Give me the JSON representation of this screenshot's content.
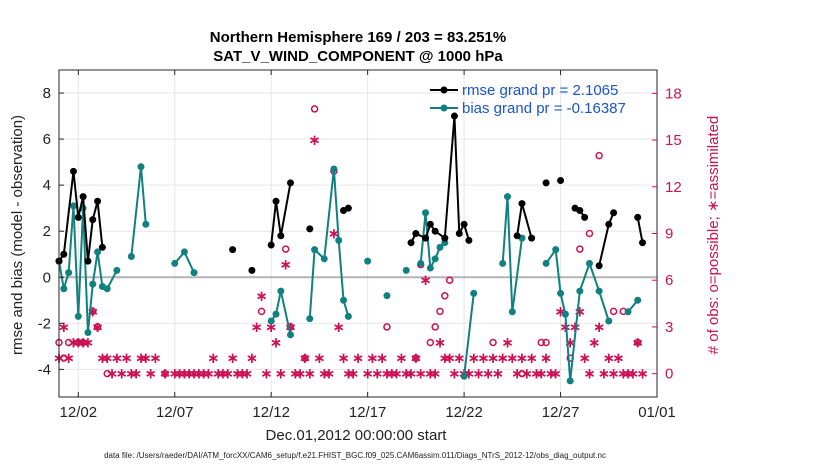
{
  "chart_data": {
    "type": "line",
    "title": "Northern Hemisphere 169 / 203 = 83.251%",
    "subtitle": "SAT_V_WIND_COMPONENT @ 1000 hPa",
    "xlabel": "Dec.01,2012 00:00:00 start",
    "ylabel": "rmse and bias (model - observation)",
    "y2label": "# of obs: o=possible; ∗=assimilated",
    "footnote": "data file: /Users/raeder/DAI/ATM_forcXX/CAM6_setup/f.e21.FHIST_BGC.f09_025.CAM6assim.011/Diags_NTrS_2012-12/obs_diag_output.nc",
    "xlim": [
      0,
      31
    ],
    "ylim": [
      -5.2,
      9
    ],
    "y2lim": [
      -1.5,
      19.5
    ],
    "x_ticks": [
      {
        "x": 1,
        "label": "12/02"
      },
      {
        "x": 6,
        "label": "12/07"
      },
      {
        "x": 11,
        "label": "12/12"
      },
      {
        "x": 16,
        "label": "12/17"
      },
      {
        "x": 21,
        "label": "12/22"
      },
      {
        "x": 26,
        "label": "12/27"
      },
      {
        "x": 31,
        "label": "01/01"
      }
    ],
    "y_ticks": [
      -4,
      -2,
      0,
      2,
      4,
      6,
      8
    ],
    "y2_ticks": [
      0,
      3,
      6,
      9,
      12,
      15,
      18
    ],
    "colors": {
      "rmse": "#000000",
      "bias": "#118080",
      "obs": "#cc1155",
      "legend_text": "#1a55cc",
      "zero_line": "#b3b3b3"
    },
    "series": [
      {
        "name": "rmse",
        "legend": "rmse grand pr = 2.1065",
        "points": [
          [
            0,
            0.7
          ],
          [
            0.25,
            1.0
          ],
          [
            0.75,
            4.6
          ],
          [
            1.0,
            2.6
          ],
          [
            1.25,
            3.5
          ],
          [
            1.5,
            0.7
          ],
          [
            1.75,
            2.5
          ],
          [
            2.0,
            3.3
          ],
          [
            2.25,
            1.3
          ],
          [
            9.0,
            1.2
          ],
          [
            10.0,
            0.3
          ],
          [
            11.0,
            1.4
          ],
          [
            11.25,
            3.3
          ],
          [
            11.5,
            1.8
          ],
          [
            12.0,
            4.1
          ],
          [
            13.0,
            2.1
          ],
          [
            14.75,
            2.9
          ],
          [
            15.0,
            3.0
          ],
          [
            18.25,
            1.5
          ],
          [
            18.5,
            1.9
          ],
          [
            19.0,
            1.7
          ],
          [
            19.25,
            2.3
          ],
          [
            19.5,
            2.0
          ],
          [
            20.0,
            1.7
          ],
          [
            20.5,
            7.0
          ],
          [
            20.75,
            1.9
          ],
          [
            21.0,
            2.3
          ],
          [
            21.25,
            1.6
          ],
          [
            23.75,
            1.8
          ],
          [
            24.0,
            3.2
          ],
          [
            24.5,
            1.7
          ],
          [
            25.25,
            4.1
          ],
          [
            26.0,
            4.2
          ],
          [
            26.75,
            3.0
          ],
          [
            27.0,
            2.9
          ],
          [
            27.25,
            2.6
          ],
          [
            28.0,
            0.5
          ],
          [
            28.5,
            2.3
          ],
          [
            28.75,
            2.8
          ],
          [
            30.0,
            2.6
          ],
          [
            30.25,
            1.5
          ]
        ]
      },
      {
        "name": "bias",
        "legend": "bias grand pr = -0.16387",
        "points": [
          [
            0,
            0.7
          ],
          [
            0.25,
            -0.5
          ],
          [
            0.5,
            0.2
          ],
          [
            0.75,
            3.1
          ],
          [
            1.0,
            -1.7
          ],
          [
            1.25,
            3.0
          ],
          [
            1.5,
            -2.4
          ],
          [
            1.75,
            -0.3
          ],
          [
            2.0,
            1.1
          ],
          [
            2.25,
            -0.4
          ],
          [
            2.5,
            -0.5
          ],
          [
            3.0,
            0.3
          ],
          [
            3.75,
            0.9
          ],
          [
            4.25,
            4.8
          ],
          [
            4.5,
            2.3
          ],
          [
            6.0,
            0.6
          ],
          [
            6.5,
            1.1
          ],
          [
            7.0,
            0.2
          ],
          [
            11.0,
            -1.9
          ],
          [
            11.25,
            -1.6
          ],
          [
            11.5,
            -0.6
          ],
          [
            12.0,
            -2.5
          ],
          [
            13.0,
            -1.8
          ],
          [
            13.25,
            1.2
          ],
          [
            13.75,
            0.8
          ],
          [
            14.25,
            4.7
          ],
          [
            14.5,
            1.6
          ],
          [
            14.75,
            -1.0
          ],
          [
            15.0,
            -1.7
          ],
          [
            16.0,
            0.7
          ],
          [
            17.0,
            -0.8
          ],
          [
            18.0,
            0.3
          ],
          [
            18.75,
            0.6
          ],
          [
            19.0,
            2.8
          ],
          [
            19.25,
            0.4
          ],
          [
            19.5,
            0.8
          ],
          [
            19.75,
            1.3
          ],
          [
            20.0,
            1.5
          ],
          [
            21.0,
            -4.3
          ],
          [
            21.5,
            -0.7
          ],
          [
            23.0,
            0.6
          ],
          [
            23.25,
            3.5
          ],
          [
            23.5,
            -1.5
          ],
          [
            24.0,
            1.7
          ],
          [
            25.25,
            0.6
          ],
          [
            25.75,
            1.2
          ],
          [
            26.0,
            -0.7
          ],
          [
            26.25,
            -1.6
          ],
          [
            26.5,
            -4.5
          ],
          [
            27.0,
            -0.6
          ],
          [
            27.5,
            0.6
          ],
          [
            28.0,
            -0.6
          ],
          [
            28.5,
            -1.9
          ],
          [
            29.5,
            -1.5
          ],
          [
            30.0,
            -1.0
          ]
        ]
      },
      {
        "name": "obs_possible",
        "points": [
          [
            0,
            2
          ],
          [
            0.25,
            1
          ],
          [
            0.5,
            2
          ],
          [
            1.0,
            2
          ],
          [
            1.25,
            2
          ],
          [
            1.75,
            4
          ],
          [
            2.0,
            3
          ],
          [
            2.5,
            0
          ],
          [
            5.5,
            0
          ],
          [
            10.5,
            4
          ],
          [
            11.75,
            8
          ],
          [
            12.0,
            3
          ],
          [
            12.75,
            1
          ],
          [
            13.25,
            17
          ],
          [
            14.25,
            13
          ],
          [
            17.0,
            3
          ],
          [
            18.5,
            1
          ],
          [
            18.75,
            7
          ],
          [
            19.25,
            2
          ],
          [
            19.5,
            3
          ],
          [
            19.75,
            4
          ],
          [
            20.0,
            5
          ],
          [
            20.25,
            6
          ],
          [
            22.5,
            2
          ],
          [
            24.0,
            0
          ],
          [
            25.0,
            2
          ],
          [
            25.25,
            2
          ],
          [
            26.5,
            1
          ],
          [
            27.0,
            8
          ],
          [
            27.5,
            9
          ],
          [
            28.0,
            14
          ],
          [
            28.75,
            4
          ],
          [
            29.25,
            4
          ],
          [
            30.0,
            2
          ]
        ]
      },
      {
        "name": "obs_assimilated",
        "points": [
          [
            0,
            1
          ],
          [
            0.25,
            3
          ],
          [
            0.5,
            1
          ],
          [
            0.75,
            2
          ],
          [
            1.0,
            2
          ],
          [
            1.25,
            2
          ],
          [
            1.5,
            2
          ],
          [
            1.75,
            4
          ],
          [
            2.0,
            3
          ],
          [
            2.25,
            1
          ],
          [
            2.5,
            1
          ],
          [
            2.75,
            0
          ],
          [
            3.0,
            1
          ],
          [
            3.25,
            0
          ],
          [
            3.5,
            1
          ],
          [
            3.75,
            0
          ],
          [
            4.0,
            0
          ],
          [
            4.25,
            1
          ],
          [
            4.5,
            1
          ],
          [
            4.75,
            0
          ],
          [
            5.0,
            1
          ],
          [
            5.5,
            0
          ],
          [
            6.0,
            0
          ],
          [
            6.25,
            0
          ],
          [
            6.5,
            0
          ],
          [
            6.75,
            0
          ],
          [
            7.0,
            0
          ],
          [
            7.25,
            0
          ],
          [
            7.5,
            0
          ],
          [
            7.75,
            0
          ],
          [
            8.0,
            1
          ],
          [
            8.25,
            0
          ],
          [
            8.5,
            0
          ],
          [
            8.75,
            0
          ],
          [
            9.0,
            1
          ],
          [
            9.25,
            0
          ],
          [
            9.5,
            0
          ],
          [
            9.75,
            0
          ],
          [
            10.0,
            1
          ],
          [
            10.25,
            3
          ],
          [
            10.5,
            5
          ],
          [
            10.75,
            0
          ],
          [
            11.0,
            3
          ],
          [
            11.25,
            2
          ],
          [
            11.5,
            0
          ],
          [
            11.75,
            7
          ],
          [
            12.0,
            3
          ],
          [
            12.25,
            0
          ],
          [
            12.5,
            0
          ],
          [
            12.75,
            1
          ],
          [
            13.0,
            0
          ],
          [
            13.25,
            15
          ],
          [
            13.5,
            1
          ],
          [
            13.75,
            0
          ],
          [
            14.0,
            0
          ],
          [
            14.25,
            9
          ],
          [
            14.5,
            3
          ],
          [
            14.75,
            1
          ],
          [
            15.0,
            0
          ],
          [
            15.25,
            0
          ],
          [
            15.5,
            1
          ],
          [
            16.0,
            0
          ],
          [
            16.25,
            1
          ],
          [
            16.5,
            0
          ],
          [
            16.75,
            1
          ],
          [
            17.0,
            0
          ],
          [
            17.25,
            0
          ],
          [
            17.5,
            0
          ],
          [
            17.75,
            1
          ],
          [
            18.0,
            0
          ],
          [
            18.25,
            0
          ],
          [
            18.5,
            1
          ],
          [
            18.75,
            0
          ],
          [
            19.0,
            6
          ],
          [
            19.25,
            0
          ],
          [
            19.5,
            0
          ],
          [
            19.75,
            2
          ],
          [
            20.0,
            1
          ],
          [
            20.25,
            1
          ],
          [
            20.5,
            0
          ],
          [
            20.75,
            1
          ],
          [
            21.0,
            0
          ],
          [
            21.25,
            0
          ],
          [
            21.5,
            1
          ],
          [
            21.75,
            0
          ],
          [
            22.0,
            1
          ],
          [
            22.25,
            0
          ],
          [
            22.5,
            1
          ],
          [
            22.75,
            0
          ],
          [
            23.0,
            1
          ],
          [
            23.25,
            2
          ],
          [
            23.5,
            1
          ],
          [
            23.75,
            0
          ],
          [
            24.0,
            1
          ],
          [
            24.25,
            0
          ],
          [
            24.5,
            1
          ],
          [
            24.75,
            0
          ],
          [
            25.0,
            0
          ],
          [
            25.25,
            1
          ],
          [
            25.5,
            0
          ],
          [
            25.75,
            0
          ],
          [
            26.0,
            4
          ],
          [
            26.25,
            3
          ],
          [
            26.5,
            2
          ],
          [
            26.75,
            3
          ],
          [
            27.0,
            4
          ],
          [
            27.25,
            1
          ],
          [
            27.5,
            0
          ],
          [
            27.75,
            2
          ],
          [
            28.0,
            3
          ],
          [
            28.25,
            0
          ],
          [
            28.5,
            1
          ],
          [
            28.75,
            0
          ],
          [
            29.0,
            1
          ],
          [
            29.25,
            0
          ],
          [
            29.5,
            0
          ],
          [
            29.75,
            0
          ],
          [
            30.0,
            2
          ],
          [
            30.25,
            0
          ]
        ]
      }
    ]
  }
}
